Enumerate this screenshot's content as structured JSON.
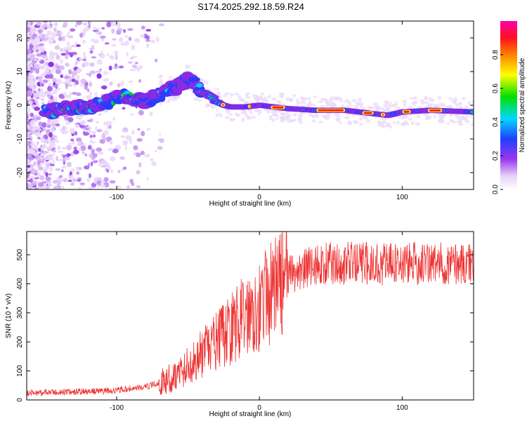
{
  "title": "S174.2025.292.18.59.R24",
  "chart_data": [
    {
      "type": "heatmap",
      "xlabel": "Height of straight line (km)",
      "ylabel": "Frequency (Hz)",
      "xlim": [
        -163,
        150
      ],
      "ylim": [
        -25,
        25
      ],
      "xticks": [
        -100,
        0,
        100
      ],
      "yticks": [
        -20,
        -10,
        0,
        10,
        20
      ],
      "colorbar": {
        "label": "Normalized spectral amplitude",
        "range": [
          0,
          1
        ],
        "ticks": [
          0.0,
          0.2,
          0.4,
          0.6,
          0.8
        ],
        "tick_labels": [
          "0.0",
          "0.2",
          "0.4",
          "0.6",
          "0.8"
        ]
      },
      "ridge_frequency_hz": {
        "x": [
          -148,
          -135,
          -120,
          -105,
          -95,
          -80,
          -70,
          -60,
          -50,
          -45,
          -40,
          -35,
          -30,
          -25,
          -20,
          -10,
          0,
          10,
          20,
          40,
          60,
          80,
          90,
          100,
          120,
          150
        ],
        "y": [
          -2,
          -1,
          -0.5,
          1,
          3,
          1,
          3,
          5,
          8,
          6,
          4,
          3,
          1,
          0,
          -0.5,
          -0.5,
          0,
          -0.5,
          -1,
          -1.5,
          -1.5,
          -2.5,
          -3,
          -2,
          -1.5,
          -2
        ]
      }
    },
    {
      "type": "line",
      "xlabel": "Height of straight line (km)",
      "ylabel": "SNR (10 * v/v)",
      "xlim": [
        -163,
        150
      ],
      "ylim": [
        0,
        580
      ],
      "xticks": [
        -100,
        0,
        100
      ],
      "yticks": [
        0,
        100,
        200,
        300,
        400,
        500
      ],
      "series": [
        {
          "name": "SNR",
          "color": "#ee3333",
          "x": [
            -163,
            -140,
            -120,
            -100,
            -90,
            -80,
            -70,
            -60,
            -50,
            -40,
            -30,
            -20,
            -10,
            0,
            10,
            20,
            30,
            40,
            50,
            60,
            80,
            100,
            120,
            150
          ],
          "y": [
            20,
            22,
            25,
            28,
            35,
            40,
            55,
            75,
            110,
            150,
            190,
            230,
            280,
            310,
            360,
            420,
            450,
            465,
            470,
            470,
            470,
            470,
            470,
            470
          ]
        }
      ]
    }
  ]
}
